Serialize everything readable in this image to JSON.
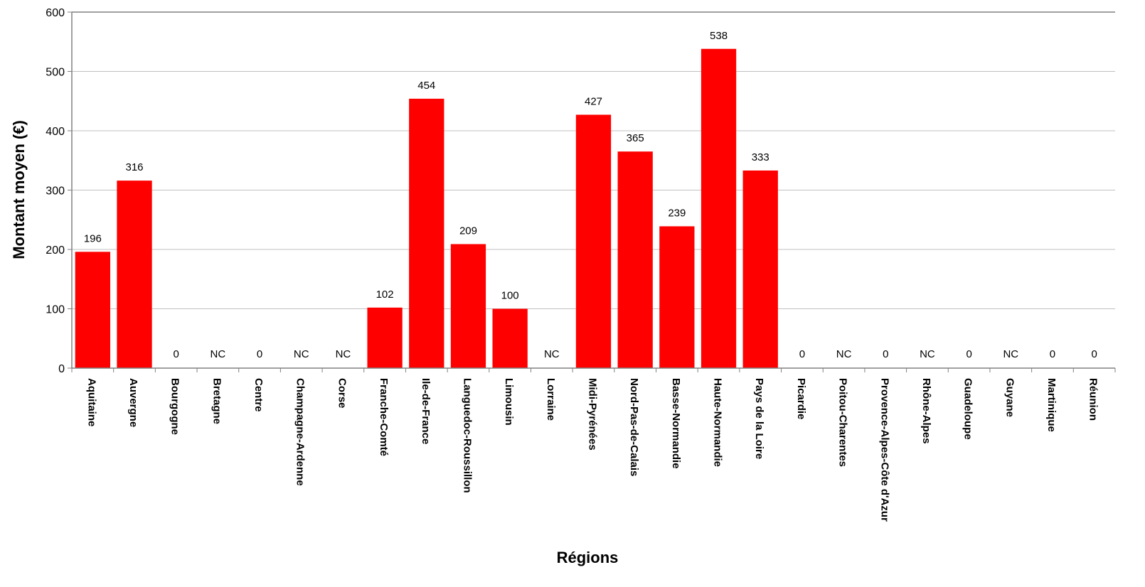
{
  "chart_data": {
    "type": "bar",
    "title": "",
    "xlabel": "Régions",
    "ylabel": "Montant moyen (€)",
    "ylim": [
      0,
      600
    ],
    "yticks": [
      0,
      100,
      200,
      300,
      400,
      500,
      600
    ],
    "grid": true,
    "legend": "none",
    "categories": [
      "Aquitaine",
      "Auvergne",
      "Bourgogne",
      "Bretagne",
      "Centre",
      "Champagne-Ardenne",
      "Corse",
      "Franche-Comté",
      "Ile-de-France",
      "Languedoc-Roussillon",
      "Limousin",
      "Lorraine",
      "Midi-Pyrénées",
      "Nord-Pas-de-Calais",
      "Basse-Normandie",
      "Haute-Normandie",
      "Pays de la Loire",
      "Picardie",
      "Poitou-Charentes",
      "Provence-Alpes-Côte d'Azur",
      "Rhône-Alpes",
      "Guadeloupe",
      "Guyane",
      "Martinique",
      "Réunion"
    ],
    "values": [
      196,
      316,
      0,
      null,
      0,
      null,
      null,
      102,
      454,
      209,
      100,
      null,
      427,
      365,
      239,
      538,
      333,
      0,
      null,
      0,
      null,
      0,
      null,
      0,
      0
    ],
    "data_labels": [
      "196",
      "316",
      "0",
      "NC",
      "0",
      "NC",
      "NC",
      "102",
      "454",
      "209",
      "100",
      "NC",
      "427",
      "365",
      "239",
      "538",
      "333",
      "0",
      "NC",
      "0",
      "NC",
      "0",
      "NC",
      "0",
      "0"
    ],
    "colors": {
      "bar": "#ff0000",
      "nc_label": "#ff0000",
      "grid": "#c0c0c0",
      "axis": "#808080"
    }
  }
}
